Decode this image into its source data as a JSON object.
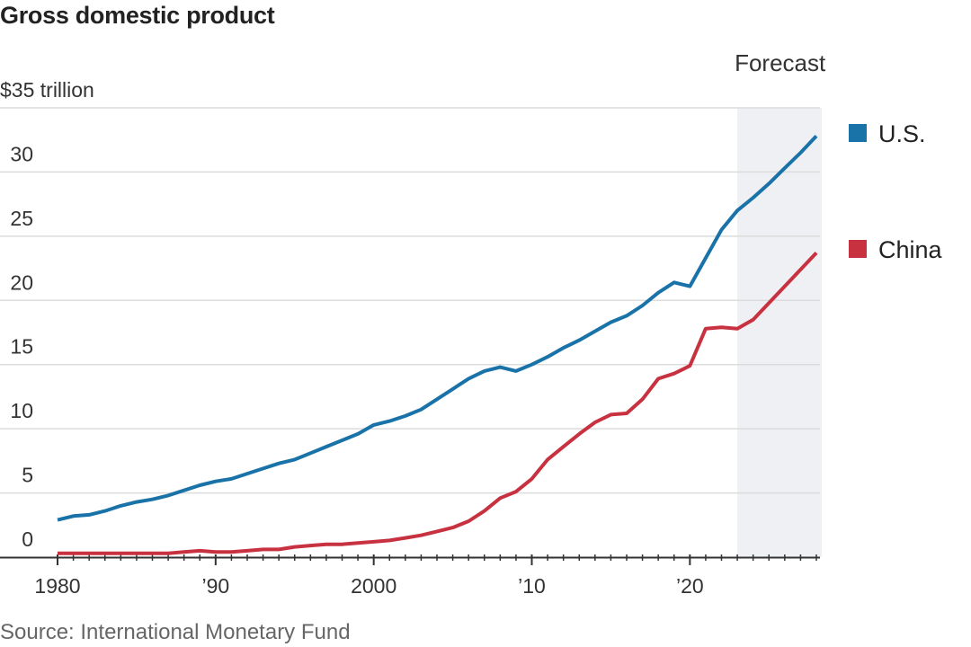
{
  "chart_data": {
    "type": "line",
    "title": "Gross domestic product",
    "ylabel": "$35 trillion",
    "xlabel": "",
    "source": "Source: International Monetary Fund",
    "ylim": [
      0,
      35
    ],
    "xlim": [
      1980,
      2028
    ],
    "grid": true,
    "y_ticks": [
      {
        "value": 0,
        "label": "0"
      },
      {
        "value": 5,
        "label": "5"
      },
      {
        "value": 10,
        "label": "10"
      },
      {
        "value": 15,
        "label": "15"
      },
      {
        "value": 20,
        "label": "20"
      },
      {
        "value": 25,
        "label": "25"
      },
      {
        "value": 30,
        "label": "30"
      },
      {
        "value": 35,
        "label": "$35 trillion"
      }
    ],
    "x_ticks": [
      {
        "value": 1980,
        "label": "1980"
      },
      {
        "value": 1990,
        "label": "’90"
      },
      {
        "value": 2000,
        "label": "2000"
      },
      {
        "value": 2010,
        "label": "’10"
      },
      {
        "value": 2020,
        "label": "’20"
      }
    ],
    "forecast": {
      "label": "Forecast",
      "start": 2023,
      "end": 2028,
      "color": "#eff0f3"
    },
    "legend_position": "right",
    "x": [
      1980,
      1981,
      1982,
      1983,
      1984,
      1985,
      1986,
      1987,
      1988,
      1989,
      1990,
      1991,
      1992,
      1993,
      1994,
      1995,
      1996,
      1997,
      1998,
      1999,
      2000,
      2001,
      2002,
      2003,
      2004,
      2005,
      2006,
      2007,
      2008,
      2009,
      2010,
      2011,
      2012,
      2013,
      2014,
      2015,
      2016,
      2017,
      2018,
      2019,
      2020,
      2021,
      2022,
      2023,
      2024,
      2025,
      2026,
      2027,
      2028
    ],
    "series": [
      {
        "name": "U.S.",
        "color": "#1a73a8",
        "values": [
          2.9,
          3.2,
          3.3,
          3.6,
          4.0,
          4.3,
          4.5,
          4.8,
          5.2,
          5.6,
          5.9,
          6.1,
          6.5,
          6.9,
          7.3,
          7.6,
          8.1,
          8.6,
          9.1,
          9.6,
          10.3,
          10.6,
          11.0,
          11.5,
          12.3,
          13.1,
          13.9,
          14.5,
          14.8,
          14.5,
          15.0,
          15.6,
          16.3,
          16.9,
          17.6,
          18.3,
          18.8,
          19.6,
          20.6,
          21.4,
          21.1,
          23.3,
          25.5,
          27.0,
          28.0,
          29.1,
          30.3,
          31.5,
          32.8
        ]
      },
      {
        "name": "China",
        "color": "#c8313f",
        "values": [
          0.3,
          0.3,
          0.3,
          0.3,
          0.3,
          0.3,
          0.3,
          0.3,
          0.4,
          0.5,
          0.4,
          0.4,
          0.5,
          0.6,
          0.6,
          0.8,
          0.9,
          1.0,
          1.0,
          1.1,
          1.2,
          1.3,
          1.5,
          1.7,
          2.0,
          2.3,
          2.8,
          3.6,
          4.6,
          5.1,
          6.1,
          7.6,
          8.6,
          9.6,
          10.5,
          11.1,
          11.2,
          12.3,
          13.9,
          14.3,
          14.9,
          17.8,
          17.9,
          17.8,
          18.5,
          19.8,
          21.1,
          22.4,
          23.7
        ]
      }
    ]
  }
}
